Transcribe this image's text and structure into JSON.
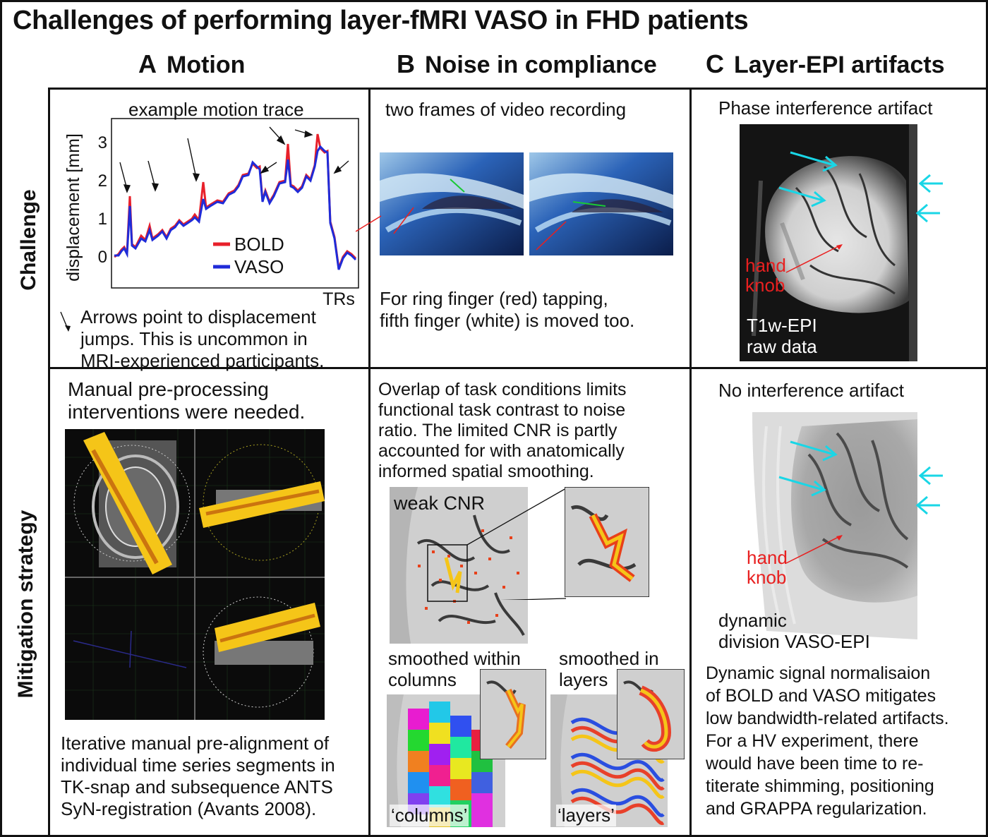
{
  "title": "Challenges of performing layer-fMRI VASO in FHD patients",
  "columns": [
    {
      "letter": "A",
      "label": "Motion"
    },
    {
      "letter": "B",
      "label": "Noise in compliance"
    },
    {
      "letter": "C",
      "label": "Layer-EPI artifacts"
    }
  ],
  "rows": {
    "challenge": "Challenge",
    "mitigation": "Mitigation strategy"
  },
  "panelA1": {
    "title": "example motion trace",
    "ylabel": "displacement [mm]",
    "xlabel": "TRs",
    "yticks": [
      "0",
      "1",
      "2",
      "3"
    ],
    "legend_bold": "BOLD",
    "legend_vaso": "VASO",
    "note": [
      "Arrows point to displacement",
      "jumps. This is uncommon in",
      "MRI-experienced participants."
    ],
    "colors": {
      "bold": "#e8202a",
      "vaso": "#1f2bd8"
    }
  },
  "panelB1": {
    "title": "two frames of video recording",
    "note": [
      "For ring finger (red) tapping,",
      "fifth finger (white) is moved too."
    ]
  },
  "panelC1": {
    "title": "Phase interference artifact",
    "label_red": [
      "hand",
      "knob"
    ],
    "label_white": [
      "T1w-EPI",
      "raw data"
    ]
  },
  "panelA2": {
    "title": [
      "Manual pre-processing",
      "interventions were needed."
    ],
    "note": [
      "Iterative manual pre-alignment of",
      "individual time series segments in",
      "TK-snap and subsequence ANTS",
      "SyN-registration (Avants 2008)."
    ]
  },
  "panelB2": {
    "text": [
      "Overlap of task conditions limits",
      "functional task contrast to noise",
      "ratio. The limited CNR is partly",
      "accounted for with  anatomically",
      "informed spatial smoothing."
    ],
    "weak": "weak CNR",
    "sm_cols": [
      "smoothed within",
      "columns"
    ],
    "sm_layers": [
      "smoothed in",
      "layers"
    ],
    "tag_cols": "‘columns’",
    "tag_layers": "‘layers’"
  },
  "panelC2": {
    "title": "No interference artifact",
    "label_red": [
      "hand",
      "knob"
    ],
    "label_black": [
      "dynamic",
      "division VASO-EPI"
    ],
    "note": [
      "Dynamic signal normalisaion",
      "of BOLD and VASO mitigates",
      "low bandwidth-related artifacts.",
      "For a HV experiment, there",
      "would have been time to re-",
      "titerate shimming, positioning",
      "and GRAPPA regularization."
    ]
  }
}
